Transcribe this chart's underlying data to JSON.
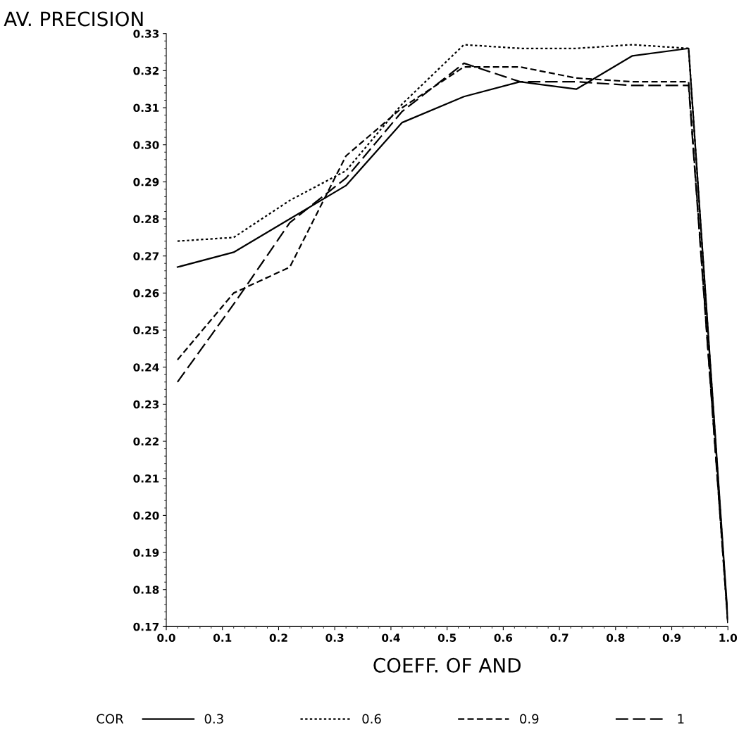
{
  "chart_data": {
    "type": "line",
    "ylabel": "AV. PRECISION",
    "xlabel": "COEFF. OF AND",
    "legend_title": "COR",
    "legend": "bottom",
    "x": [
      0.02,
      0.12,
      0.22,
      0.32,
      0.42,
      0.53,
      0.63,
      0.73,
      0.83,
      0.93,
      1.0
    ],
    "series": [
      {
        "name": "0.3",
        "color": "#000000",
        "line_style": "solid",
        "values": [
          0.267,
          0.271,
          0.28,
          0.289,
          0.306,
          0.313,
          0.317,
          0.315,
          0.324,
          0.326,
          0.172
        ]
      },
      {
        "name": "0.6",
        "color": "#000000",
        "line_style": "dotted",
        "values": [
          0.274,
          0.275,
          0.285,
          0.293,
          0.311,
          0.327,
          0.326,
          0.326,
          0.327,
          0.326,
          0.171
        ]
      },
      {
        "name": "0.9",
        "color": "#000000",
        "line_style": "dashed",
        "values": [
          0.242,
          0.26,
          0.267,
          0.297,
          0.31,
          0.321,
          0.321,
          0.318,
          0.317,
          0.317,
          0.171
        ]
      },
      {
        "name": "1",
        "color": "#000000",
        "line_style": "longdash",
        "values": [
          0.236,
          0.257,
          0.279,
          0.291,
          0.309,
          0.322,
          0.317,
          0.317,
          0.316,
          0.316,
          0.171
        ]
      }
    ],
    "xlim": [
      0.0,
      1.0
    ],
    "xticks": [
      {
        "value": 0.0,
        "label": "0.0"
      },
      0.1,
      0.2,
      0.3,
      0.4,
      0.5,
      0.6,
      0.7,
      0.8,
      0.9,
      {
        "value": 1.0,
        "label": "1.0"
      }
    ],
    "ylim": [
      0.17,
      0.33
    ],
    "yticks": [
      0.17,
      0.18,
      0.19,
      {
        "value": 0.2,
        "label": "0.20"
      },
      0.21,
      0.22,
      0.23,
      0.24,
      0.25,
      0.26,
      0.27,
      0.28,
      0.29,
      {
        "value": 0.3,
        "label": "0.30"
      },
      0.31,
      0.32,
      0.33
    ],
    "grid": false,
    "marker": "none"
  }
}
